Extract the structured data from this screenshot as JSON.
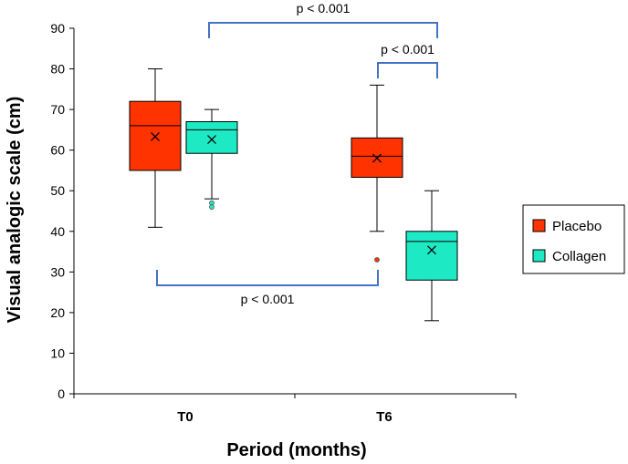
{
  "chart_data": {
    "type": "box",
    "xlabel": "Period (months)",
    "ylabel": "Visual analogic scale (cm)",
    "ylim": [
      0,
      90
    ],
    "yticks": [
      "0",
      "10",
      "20",
      "30",
      "40",
      "50",
      "60",
      "70",
      "80",
      "90"
    ],
    "categories": [
      "T0",
      "T6"
    ],
    "series": [
      {
        "name": "Placebo",
        "color": "#ff3300",
        "boxes": [
          {
            "category": "T0",
            "min": 41,
            "q1": 55,
            "median": 66,
            "q3": 72,
            "max": 80,
            "mean": 63.3,
            "outliers": []
          },
          {
            "category": "T6",
            "min": 40,
            "q1": 53.3,
            "median": 58.5,
            "q3": 63,
            "max": 76,
            "mean": 58,
            "outliers": [
              33
            ]
          }
        ]
      },
      {
        "name": "Collagen",
        "color": "#1de9c4",
        "boxes": [
          {
            "category": "T0",
            "min": 48,
            "q1": 59.2,
            "median": 65,
            "q3": 67,
            "max": 70,
            "mean": 62.6,
            "outliers": [
              47,
              46
            ]
          },
          {
            "category": "T6",
            "min": 18,
            "q1": 28,
            "median": 37.5,
            "q3": 40,
            "max": 50,
            "mean": 35.4,
            "outliers": []
          }
        ]
      }
    ],
    "annotations": [
      {
        "text": "p < 0.001",
        "from": "Collagen T0",
        "to": "Collagen T6"
      },
      {
        "text": "p < 0.001",
        "from": "Placebo T6",
        "to": "Collagen T6"
      },
      {
        "text": "p < 0.001",
        "from": "Placebo T0",
        "to": "Placebo T6"
      }
    ],
    "legend": {
      "position": "right",
      "entries": [
        "Placebo",
        "Collagen"
      ]
    },
    "bracket_color": "#4472c4"
  }
}
